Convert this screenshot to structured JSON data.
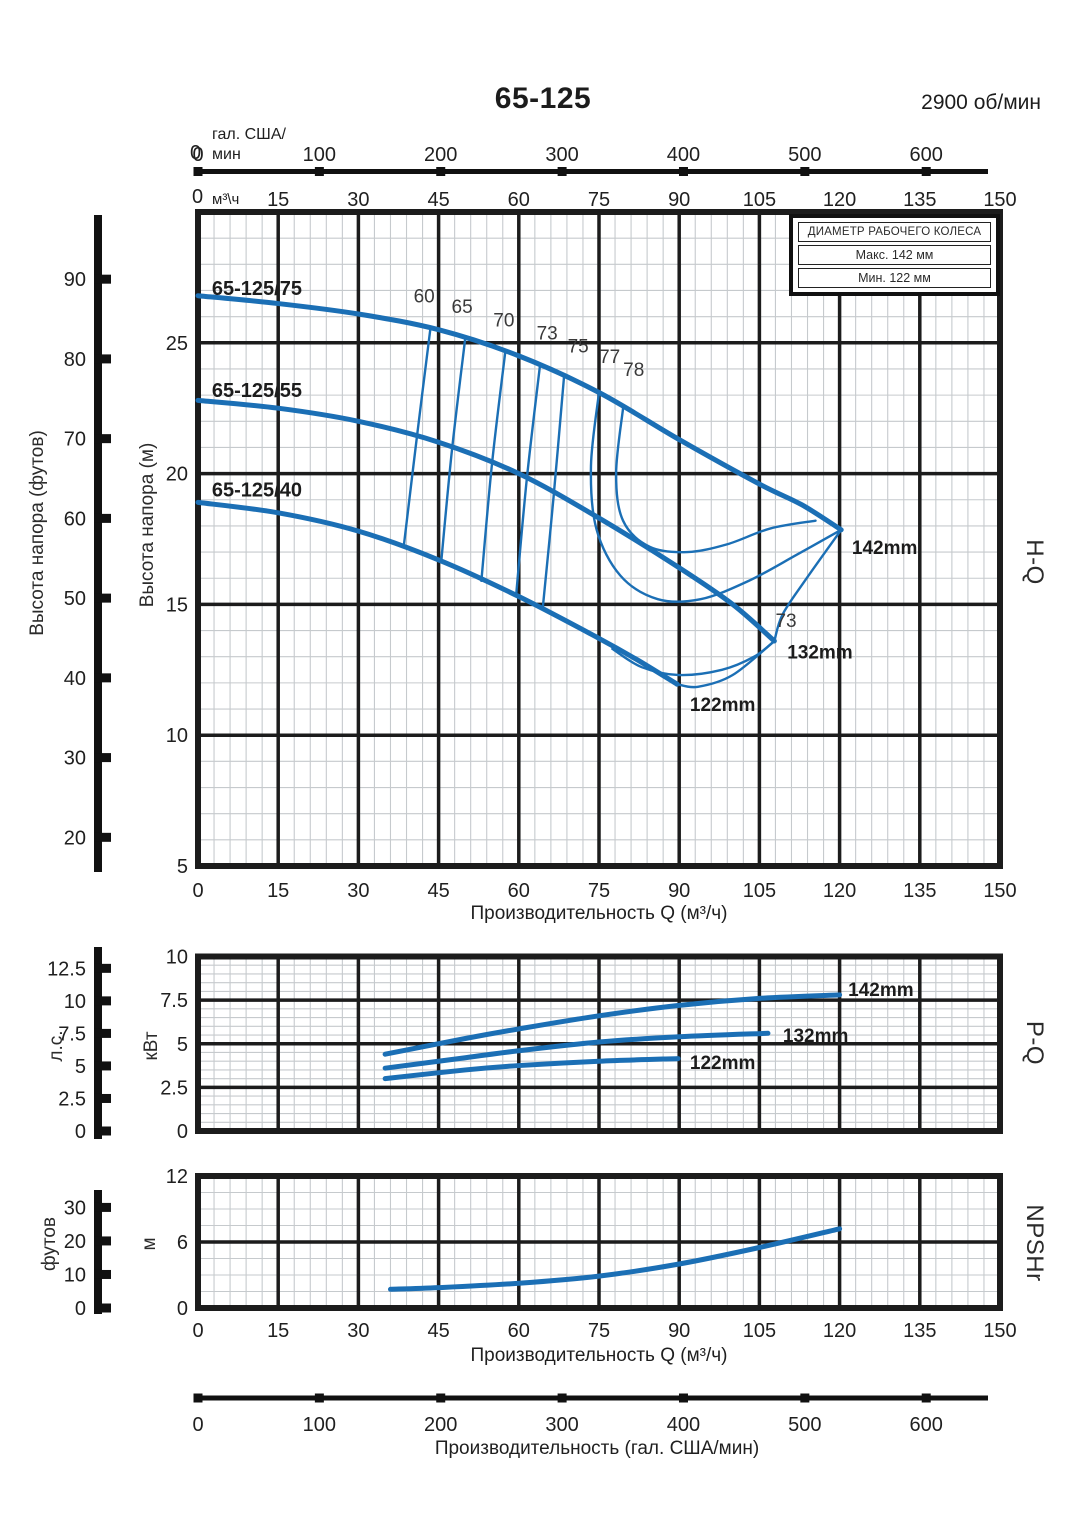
{
  "title": "65-125",
  "rpm_label": "2900 об/мин",
  "legend": {
    "header": "ДИАМЕТР РАБОЧЕГО КОЛЕСА",
    "row_max": "Макс. 142 мм",
    "row_min": "Мин. 122 мм"
  },
  "top_gal_axis": {
    "unit_line1": "гал. США/",
    "unit_line2": "мин",
    "zero": "0",
    "ticks": [
      100,
      200,
      300,
      400,
      500,
      600
    ]
  },
  "m3h_axis": {
    "zero": "0",
    "unit": "м³\\ч",
    "ticks": [
      15,
      30,
      45,
      60,
      75,
      90,
      105,
      120,
      135,
      150
    ]
  },
  "bottom_gal_axis": {
    "ticks": [
      0,
      100,
      200,
      300,
      400,
      500,
      600
    ],
    "label": "Производительность (гал. США/мин)"
  },
  "colors": {
    "curve_blue": "#1b6fb5",
    "grid_major": "#1c1c1c",
    "grid_minor": "#c6cacd",
    "text": "#2b2b2b"
  },
  "chart_data": [
    {
      "id": "hq",
      "type": "line",
      "side_label": "H-Q",
      "xlabel": "Производительность Q (м³/ч)",
      "xlim": [
        0,
        150
      ],
      "xticks": [
        0,
        15,
        30,
        45,
        60,
        75,
        90,
        105,
        120,
        135,
        150
      ],
      "y_m": {
        "label": "Высота напора (м)",
        "lim": [
          5,
          30
        ],
        "ticks": [
          5,
          10,
          15,
          20,
          25
        ]
      },
      "y_ft": {
        "label": "Высота напора (футов)",
        "ticks": [
          20,
          30,
          40,
          50,
          60,
          70,
          80,
          90
        ]
      },
      "series": [
        {
          "name": "65-125/75",
          "impeller": "142mm",
          "points": [
            [
              0,
              26.8
            ],
            [
              15,
              26.5
            ],
            [
              30,
              26.1
            ],
            [
              45,
              25.5
            ],
            [
              60,
              24.5
            ],
            [
              75,
              23.1
            ],
            [
              90,
              21.3
            ],
            [
              105,
              19.6
            ],
            [
              113,
              18.8
            ],
            [
              120.3,
              17.85
            ]
          ],
          "name_label": {
            "q": 2.6,
            "m": 27.1
          },
          "impeller_label": {
            "q": 122.3,
            "m": 17.2
          }
        },
        {
          "name": "65-125/55",
          "impeller": "132mm",
          "points": [
            [
              0,
              22.8
            ],
            [
              15,
              22.5
            ],
            [
              30,
              22.0
            ],
            [
              45,
              21.2
            ],
            [
              60,
              20.0
            ],
            [
              75,
              18.3
            ],
            [
              90,
              16.4
            ],
            [
              100,
              15.0
            ],
            [
              107.8,
              13.6
            ]
          ],
          "name_label": {
            "q": 2.6,
            "m": 23.2
          },
          "impeller_label": {
            "q": 110.2,
            "m": 13.2
          }
        },
        {
          "name": "65-125/40",
          "impeller": "122mm",
          "points": [
            [
              0,
              18.9
            ],
            [
              15,
              18.5
            ],
            [
              30,
              17.8
            ],
            [
              45,
              16.7
            ],
            [
              60,
              15.3
            ],
            [
              75,
              13.7
            ],
            [
              82,
              12.9
            ],
            [
              89.6,
              11.95
            ]
          ],
          "name_label": {
            "q": 2.6,
            "m": 19.4
          },
          "impeller_label": {
            "q": 92.0,
            "m": 11.2
          }
        }
      ],
      "efficiency_lines": [
        {
          "label": "60",
          "points": [
            [
              43.5,
              25.6
            ],
            [
              41,
              21.5
            ],
            [
              38.5,
              17.25
            ]
          ],
          "label_pos": {
            "q": 42.3,
            "m": 26.8
          }
        },
        {
          "label": "65",
          "points": [
            [
              50,
              25.2
            ],
            [
              47.5,
              20.9
            ],
            [
              45.5,
              16.65
            ]
          ],
          "label_pos": {
            "q": 49.4,
            "m": 26.4
          }
        },
        {
          "label": "70",
          "points": [
            [
              57.5,
              24.7
            ],
            [
              55,
              20.4
            ],
            [
              53,
              15.9
            ]
          ],
          "label_pos": {
            "q": 57.2,
            "m": 25.9
          }
        },
        {
          "label": "73",
          "points": [
            [
              64,
              24.2
            ],
            [
              61.5,
              19.8
            ],
            [
              59.5,
              15.35
            ]
          ],
          "label_pos": {
            "q": 65.3,
            "m": 25.4
          }
        },
        {
          "label": "75",
          "points": [
            [
              68.5,
              23.8
            ],
            [
              66.5,
              19.1
            ],
            [
              64.5,
              14.9
            ]
          ],
          "label_pos": {
            "q": 71.1,
            "m": 24.9
          }
        },
        {
          "label": "77",
          "points": [
            [
              75,
              23.1
            ],
            [
              73.5,
              20.3
            ],
            [
              74.5,
              17.9
            ],
            [
              79,
              16.1
            ],
            [
              86,
              15.2
            ],
            [
              94,
              15.2
            ],
            [
              103,
              15.9
            ],
            [
              112,
              16.9
            ],
            [
              120.3,
              17.85
            ]
          ],
          "label_pos": {
            "q": 77.0,
            "m": 24.5
          }
        },
        {
          "label": "78",
          "points": [
            [
              79.5,
              22.5
            ],
            [
              78.2,
              20.0
            ],
            [
              79.5,
              18.2
            ],
            [
              84.5,
              17.2
            ],
            [
              91.5,
              17.0
            ],
            [
              99,
              17.3
            ],
            [
              107,
              17.9
            ],
            [
              115.5,
              18.2
            ]
          ],
          "label_pos": {
            "q": 81.5,
            "m": 24.0
          }
        }
      ],
      "envelope_lines": [
        {
          "points": [
            [
              120.3,
              17.85
            ],
            [
              113.5,
              15.9
            ],
            [
              109.3,
              14.6
            ],
            [
              107.8,
              13.6
            ]
          ]
        },
        {
          "points": [
            [
              77.5,
              13.3
            ],
            [
              83,
              12.6
            ],
            [
              90,
              12.3
            ],
            [
              98,
              12.5
            ],
            [
              104,
              13.0
            ],
            [
              107.8,
              13.6
            ]
          ]
        },
        {
          "points": [
            [
              107.8,
              13.6
            ],
            [
              100,
              12.3
            ],
            [
              93.5,
              11.85
            ],
            [
              89.6,
              11.95
            ]
          ]
        }
      ],
      "annotations": [
        {
          "text": "73",
          "q": 108.0,
          "m": 14.4
        }
      ]
    },
    {
      "id": "pq",
      "type": "line",
      "side_label": "P-Q",
      "y_kw": {
        "label": "кВт",
        "lim": [
          0,
          10
        ],
        "ticks": [
          0,
          2.5,
          5,
          7.5,
          10
        ]
      },
      "y_hp": {
        "label": "л.с.",
        "ticks": [
          0,
          2.5,
          5,
          7.5,
          10,
          12.5
        ]
      },
      "series": [
        {
          "impeller": "142mm",
          "points": [
            [
              35,
              4.4
            ],
            [
              50,
              5.3
            ],
            [
              60,
              5.85
            ],
            [
              75,
              6.6
            ],
            [
              90,
              7.2
            ],
            [
              105,
              7.6
            ],
            [
              120,
              7.8
            ]
          ],
          "impeller_label": {
            "q": 121.6,
            "kw": 8.15
          }
        },
        {
          "impeller": "132mm",
          "points": [
            [
              35,
              3.6
            ],
            [
              50,
              4.2
            ],
            [
              60,
              4.6
            ],
            [
              75,
              5.1
            ],
            [
              90,
              5.4
            ],
            [
              106.6,
              5.6
            ]
          ],
          "impeller_label": {
            "q": 109.4,
            "kw": 5.5
          }
        },
        {
          "impeller": "122mm",
          "points": [
            [
              35,
              3.0
            ],
            [
              50,
              3.5
            ],
            [
              60,
              3.75
            ],
            [
              75,
              4.0
            ],
            [
              89.8,
              4.15
            ]
          ],
          "impeller_label": {
            "q": 92.0,
            "kw": 3.95
          }
        }
      ]
    },
    {
      "id": "npsh",
      "type": "line",
      "side_label": "NPSHr",
      "xlabel": "Производительность Q (м³/ч)",
      "xticks": [
        0,
        15,
        30,
        45,
        60,
        75,
        90,
        105,
        120,
        135,
        150
      ],
      "y_m": {
        "label": "м",
        "lim": [
          0,
          12
        ],
        "ticks": [
          0,
          6,
          12
        ]
      },
      "y_ft": {
        "label": "футов",
        "ticks": [
          0,
          10,
          20,
          30
        ]
      },
      "series": [
        {
          "points": [
            [
              36,
              1.7
            ],
            [
              45,
              1.85
            ],
            [
              60,
              2.25
            ],
            [
              75,
              2.9
            ],
            [
              90,
              4.0
            ],
            [
              105,
              5.5
            ],
            [
              120,
              7.2
            ]
          ]
        }
      ]
    }
  ]
}
